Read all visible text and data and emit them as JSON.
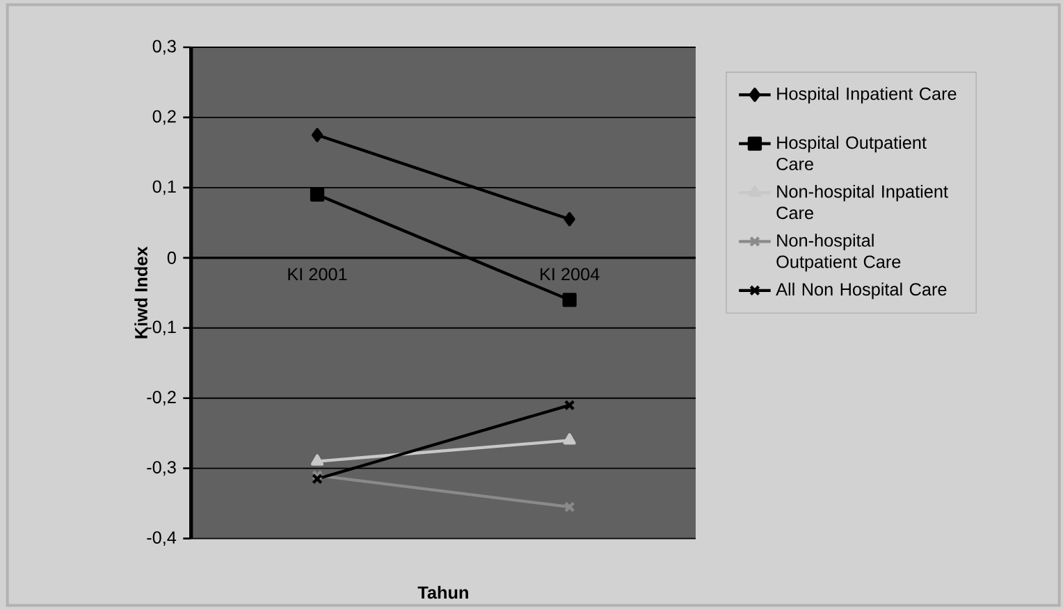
{
  "chart_data": {
    "type": "line",
    "xlabel": "Tahun",
    "ylabel": "Kiwd Index",
    "categories": [
      "KI 2001",
      "KI 2004"
    ],
    "ylim": [
      -0.4,
      0.3
    ],
    "yticks": [
      {
        "value": -0.4,
        "label": "-0,4"
      },
      {
        "value": -0.3,
        "label": "-0,3"
      },
      {
        "value": -0.2,
        "label": "-0,2"
      },
      {
        "value": -0.1,
        "label": "-0,1"
      },
      0,
      {
        "value": 0.1,
        "label": "0,1"
      },
      {
        "value": 0.2,
        "label": "0,2"
      },
      {
        "value": 0.3,
        "label": "0,3"
      }
    ],
    "grid": "y",
    "legend": "right",
    "series": [
      {
        "name": "Hospital Inpatient Care",
        "color": "#000000",
        "marker": "diamond",
        "values": [
          0.175,
          0.055
        ]
      },
      {
        "name": "Hospital Outpatient Care",
        "color": "#000000",
        "marker": "square",
        "values": [
          0.09,
          -0.06
        ]
      },
      {
        "name": "Non-hospital Inpatient Care",
        "color": "#c8c8c8",
        "marker": "triangle",
        "values": [
          -0.29,
          -0.26
        ]
      },
      {
        "name": "Non-hospital Outpatient Care",
        "color": "#8a8a8a",
        "marker": "cross",
        "values": [
          -0.31,
          -0.355
        ]
      },
      {
        "name": "All Non Hospital Care",
        "color": "#000000",
        "marker": "cross",
        "values": [
          -0.315,
          -0.21
        ]
      }
    ]
  }
}
